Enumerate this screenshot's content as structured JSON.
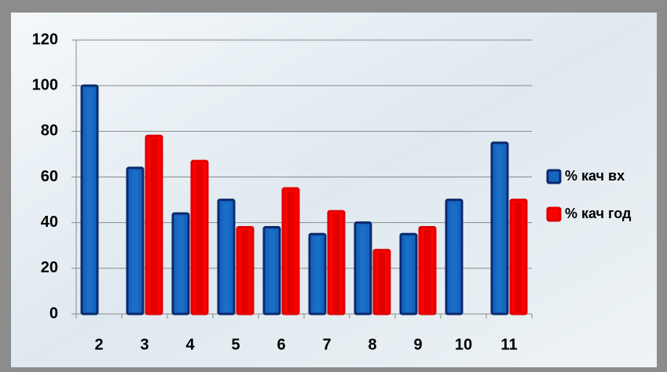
{
  "chart_data": {
    "type": "bar",
    "categories": [
      "2",
      "3",
      "4",
      "5",
      "6",
      "7",
      "8",
      "9",
      "10",
      "11"
    ],
    "series": [
      {
        "name": "% кач вх",
        "color": "#1565c0",
        "values": [
          100,
          64,
          44,
          50,
          38,
          35,
          40,
          35,
          50,
          75
        ]
      },
      {
        "name": "% кач год",
        "color": "#ff0000",
        "values": [
          null,
          78,
          67,
          38,
          55,
          45,
          28,
          38,
          null,
          50
        ]
      }
    ],
    "ylim": [
      0,
      120
    ],
    "yticks": [
      0,
      20,
      40,
      60,
      80,
      100,
      120
    ],
    "grid": true,
    "legend": "right"
  }
}
